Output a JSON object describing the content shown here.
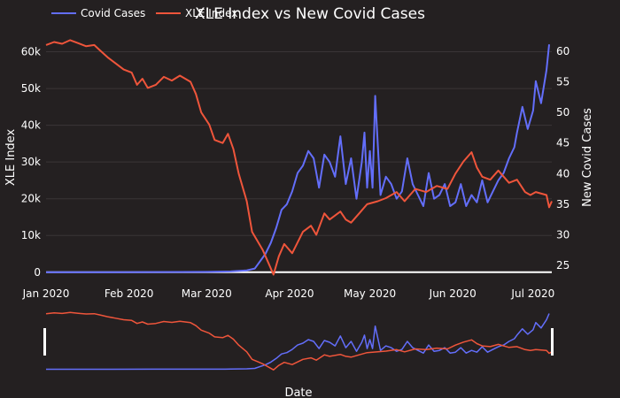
{
  "chart_data": {
    "type": "line",
    "title": "XLE Index vs New Covid Cases",
    "xlabel": "Date",
    "ylabel_left": "XLE Index",
    "ylabel_right": "New Covid Cases",
    "x_ticks": [
      "Jan 2020",
      "Feb 2020",
      "Mar 2020",
      "Apr 2020",
      "May 2020",
      "Jun 2020",
      "Jul 2020"
    ],
    "y_left_ticks": [
      "0",
      "10k",
      "20k",
      "30k",
      "40k",
      "50k",
      "60k"
    ],
    "y_right_ticks": [
      "25",
      "30",
      "35",
      "40",
      "45",
      "50",
      "55",
      "60"
    ],
    "ylim_left": [
      -1500,
      63500
    ],
    "ylim_right": [
      23,
      62
    ],
    "xlim": [
      "2020-01-01",
      "2020-07-08"
    ],
    "legend_position": "top-left",
    "range_slider": true,
    "series": [
      {
        "name": "Covid Cases",
        "axis": "left",
        "color": "#636efa",
        "points": [
          [
            "2020-01-01",
            0
          ],
          [
            "2020-01-20",
            0
          ],
          [
            "2020-02-10",
            50
          ],
          [
            "2020-03-01",
            90
          ],
          [
            "2020-03-10",
            200
          ],
          [
            "2020-03-16",
            500
          ],
          [
            "2020-03-19",
            1000
          ],
          [
            "2020-03-21",
            3000
          ],
          [
            "2020-03-23",
            5000
          ],
          [
            "2020-03-25",
            8000
          ],
          [
            "2020-03-27",
            12000
          ],
          [
            "2020-03-29",
            17000
          ],
          [
            "2020-03-31",
            18500
          ],
          [
            "2020-04-02",
            22000
          ],
          [
            "2020-04-04",
            27000
          ],
          [
            "2020-04-06",
            29000
          ],
          [
            "2020-04-08",
            33000
          ],
          [
            "2020-04-10",
            31000
          ],
          [
            "2020-04-12",
            23000
          ],
          [
            "2020-04-14",
            32000
          ],
          [
            "2020-04-16",
            30000
          ],
          [
            "2020-04-18",
            26000
          ],
          [
            "2020-04-20",
            37000
          ],
          [
            "2020-04-22",
            24000
          ],
          [
            "2020-04-24",
            31000
          ],
          [
            "2020-04-26",
            20000
          ],
          [
            "2020-04-28",
            30000
          ],
          [
            "2020-04-29",
            38000
          ],
          [
            "2020-04-30",
            23000
          ],
          [
            "2020-05-01",
            33000
          ],
          [
            "2020-05-02",
            23000
          ],
          [
            "2020-05-03",
            48000
          ],
          [
            "2020-05-05",
            21000
          ],
          [
            "2020-05-07",
            26000
          ],
          [
            "2020-05-09",
            24000
          ],
          [
            "2020-05-11",
            20000
          ],
          [
            "2020-05-13",
            22000
          ],
          [
            "2020-05-15",
            31000
          ],
          [
            "2020-05-17",
            24000
          ],
          [
            "2020-05-19",
            21000
          ],
          [
            "2020-05-21",
            18000
          ],
          [
            "2020-05-23",
            27000
          ],
          [
            "2020-05-25",
            20000
          ],
          [
            "2020-05-27",
            21000
          ],
          [
            "2020-05-29",
            24000
          ],
          [
            "2020-05-31",
            18000
          ],
          [
            "2020-06-02",
            19000
          ],
          [
            "2020-06-04",
            24000
          ],
          [
            "2020-06-06",
            18000
          ],
          [
            "2020-06-08",
            21000
          ],
          [
            "2020-06-10",
            19000
          ],
          [
            "2020-06-12",
            25000
          ],
          [
            "2020-06-14",
            19000
          ],
          [
            "2020-06-16",
            22000
          ],
          [
            "2020-06-18",
            25000
          ],
          [
            "2020-06-20",
            27000
          ],
          [
            "2020-06-22",
            31000
          ],
          [
            "2020-06-24",
            34000
          ],
          [
            "2020-06-25",
            38000
          ],
          [
            "2020-06-27",
            45000
          ],
          [
            "2020-06-29",
            39000
          ],
          [
            "2020-07-01",
            44000
          ],
          [
            "2020-07-02",
            52000
          ],
          [
            "2020-07-04",
            46000
          ],
          [
            "2020-07-06",
            55000
          ],
          [
            "2020-07-07",
            62000
          ]
        ]
      },
      {
        "name": "XLE Index",
        "axis": "right",
        "color": "#ef553b",
        "points": [
          [
            "2020-01-01",
            61.0
          ],
          [
            "2020-01-04",
            61.5
          ],
          [
            "2020-01-07",
            61.2
          ],
          [
            "2020-01-10",
            61.8
          ],
          [
            "2020-01-13",
            61.3
          ],
          [
            "2020-01-16",
            60.8
          ],
          [
            "2020-01-19",
            61.0
          ],
          [
            "2020-01-21",
            60.2
          ],
          [
            "2020-01-24",
            59.0
          ],
          [
            "2020-01-27",
            58.0
          ],
          [
            "2020-01-30",
            57.0
          ],
          [
            "2020-02-02",
            56.5
          ],
          [
            "2020-02-04",
            54.5
          ],
          [
            "2020-02-06",
            55.5
          ],
          [
            "2020-02-08",
            54.0
          ],
          [
            "2020-02-11",
            54.5
          ],
          [
            "2020-02-14",
            55.8
          ],
          [
            "2020-02-17",
            55.2
          ],
          [
            "2020-02-20",
            56.0
          ],
          [
            "2020-02-24",
            55.0
          ],
          [
            "2020-02-26",
            53.0
          ],
          [
            "2020-02-28",
            50.0
          ],
          [
            "2020-03-02",
            48.0
          ],
          [
            "2020-03-04",
            45.5
          ],
          [
            "2020-03-07",
            45.0
          ],
          [
            "2020-03-09",
            46.5
          ],
          [
            "2020-03-11",
            44.0
          ],
          [
            "2020-03-13",
            40.0
          ],
          [
            "2020-03-16",
            35.5
          ],
          [
            "2020-03-18",
            30.5
          ],
          [
            "2020-03-20",
            29.0
          ],
          [
            "2020-03-22",
            27.5
          ],
          [
            "2020-03-24",
            25.5
          ],
          [
            "2020-03-26",
            23.5
          ],
          [
            "2020-03-28",
            26.5
          ],
          [
            "2020-03-30",
            28.5
          ],
          [
            "2020-04-02",
            27.0
          ],
          [
            "2020-04-06",
            30.5
          ],
          [
            "2020-04-09",
            31.5
          ],
          [
            "2020-04-11",
            30.0
          ],
          [
            "2020-04-14",
            33.5
          ],
          [
            "2020-04-16",
            32.5
          ],
          [
            "2020-04-20",
            33.8
          ],
          [
            "2020-04-22",
            32.5
          ],
          [
            "2020-04-24",
            32.0
          ],
          [
            "2020-04-27",
            33.5
          ],
          [
            "2020-04-30",
            35.0
          ],
          [
            "2020-05-04",
            35.5
          ],
          [
            "2020-05-07",
            36.0
          ],
          [
            "2020-05-11",
            37.0
          ],
          [
            "2020-05-14",
            35.5
          ],
          [
            "2020-05-18",
            37.5
          ],
          [
            "2020-05-22",
            37.0
          ],
          [
            "2020-05-26",
            38.0
          ],
          [
            "2020-05-30",
            37.5
          ],
          [
            "2020-06-02",
            40.0
          ],
          [
            "2020-06-05",
            42.0
          ],
          [
            "2020-06-08",
            43.5
          ],
          [
            "2020-06-10",
            41.0
          ],
          [
            "2020-06-12",
            39.5
          ],
          [
            "2020-06-15",
            39.0
          ],
          [
            "2020-06-18",
            40.5
          ],
          [
            "2020-06-22",
            38.5
          ],
          [
            "2020-06-25",
            39.0
          ],
          [
            "2020-06-28",
            37.0
          ],
          [
            "2020-06-30",
            36.5
          ],
          [
            "2020-07-02",
            37.0
          ],
          [
            "2020-07-06",
            36.5
          ],
          [
            "2020-07-07",
            34.5
          ],
          [
            "2020-07-08",
            35.5
          ]
        ]
      }
    ]
  }
}
